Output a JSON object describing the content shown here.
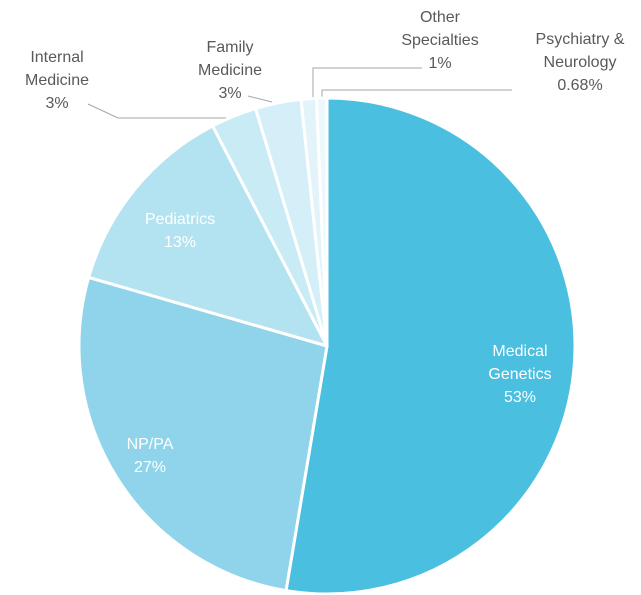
{
  "chart_data": {
    "type": "pie",
    "categories": [
      "Medical Genetics",
      "NP/PA",
      "Pediatrics",
      "Internal Medicine",
      "Family Medicine",
      "Other Specialties",
      "Psychiatry & Neurology"
    ],
    "values": [
      53,
      27,
      13,
      3,
      3,
      1,
      0.68
    ],
    "value_labels": [
      "53%",
      "27%",
      "13%",
      "3%",
      "3%",
      "1%",
      "0.68%"
    ],
    "colors": [
      "#4bbfe0",
      "#8fd4ea",
      "#b3e3f1",
      "#c8ebf6",
      "#d4eff8",
      "#e2f4fa",
      "#edf8fc"
    ]
  }
}
